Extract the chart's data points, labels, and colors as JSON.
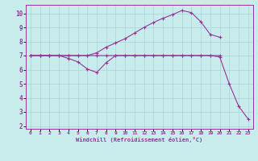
{
  "bg_color": "#c8ecec",
  "grid_color": "#aad4d4",
  "line_color": "#993399",
  "xlabel": "Windchill (Refroidissement éolien,°C)",
  "xlim": [
    -0.5,
    23.5
  ],
  "ylim": [
    1.8,
    10.6
  ],
  "yticks": [
    2,
    3,
    4,
    5,
    6,
    7,
    8,
    9,
    10
  ],
  "xticks": [
    0,
    1,
    2,
    3,
    4,
    5,
    6,
    7,
    8,
    9,
    10,
    11,
    12,
    13,
    14,
    15,
    16,
    17,
    18,
    19,
    20,
    21,
    22,
    23
  ],
  "line1_x": [
    0,
    1,
    2,
    3,
    4,
    5,
    6,
    7,
    8,
    9,
    10,
    11,
    12,
    13,
    14,
    15,
    16,
    17,
    18,
    19,
    20,
    21,
    22,
    23
  ],
  "line1_y": [
    7.0,
    7.0,
    7.0,
    7.0,
    7.0,
    7.0,
    7.0,
    7.0,
    7.0,
    7.0,
    7.0,
    7.0,
    7.0,
    7.0,
    7.0,
    7.0,
    7.0,
    7.0,
    7.0,
    7.0,
    6.9,
    5.0,
    3.4,
    2.5
  ],
  "line2_x": [
    0,
    1,
    2,
    3,
    4,
    5,
    6,
    7,
    8,
    9,
    10,
    11,
    12,
    13,
    14,
    15,
    16,
    17,
    18,
    19,
    20
  ],
  "line2_y": [
    7.0,
    7.0,
    7.0,
    7.0,
    7.0,
    7.0,
    7.0,
    7.2,
    7.6,
    7.9,
    8.2,
    8.6,
    9.0,
    9.35,
    9.65,
    9.9,
    10.2,
    10.05,
    9.4,
    8.5,
    8.3
  ],
  "line3_x": [
    0,
    1,
    2,
    3,
    4,
    5,
    6,
    7,
    8,
    9,
    10,
    11,
    12,
    13,
    14,
    15,
    16,
    17,
    18,
    19,
    20
  ],
  "line3_y": [
    7.0,
    7.0,
    7.0,
    7.0,
    6.8,
    6.55,
    6.05,
    5.8,
    6.5,
    7.0,
    7.0,
    7.0,
    7.0,
    7.0,
    7.0,
    7.0,
    7.0,
    7.0,
    7.0,
    7.0,
    7.0
  ]
}
